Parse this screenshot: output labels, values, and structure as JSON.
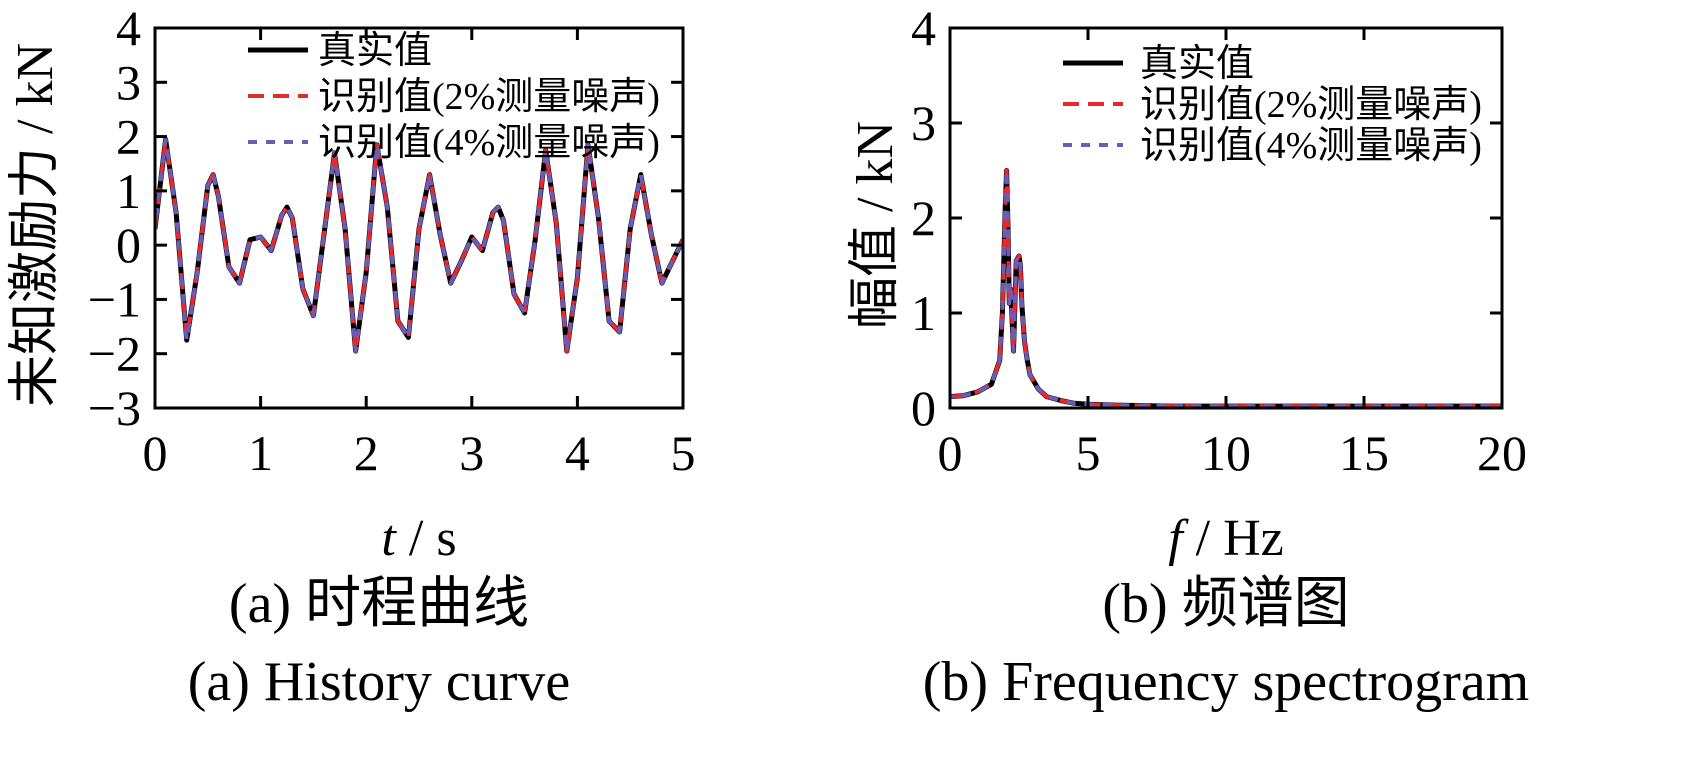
{
  "chart_data": [
    {
      "type": "line",
      "ylabel": "未知激励力 / kN",
      "xlabel_symbol": "t",
      "xlabel_unit": "/ s",
      "xlim": [
        0,
        5
      ],
      "ylim": [
        -3,
        4
      ],
      "xticks": [
        "0",
        "1",
        "2",
        "3",
        "4",
        "5"
      ],
      "yticks": [
        "−3",
        "−2",
        "−1",
        "0",
        "1",
        "2",
        "3",
        "4"
      ],
      "grid": false,
      "legend_position": "top-right",
      "caption_cn": "(a)  时程曲线",
      "caption_en": "(a)  History curve",
      "x": [
        0,
        0.1,
        0.2,
        0.3,
        0.4,
        0.5,
        0.55,
        0.6,
        0.7,
        0.8,
        0.9,
        1.0,
        1.1,
        1.2,
        1.25,
        1.3,
        1.4,
        1.5,
        1.6,
        1.7,
        1.8,
        1.9,
        2.0,
        2.1,
        2.2,
        2.3,
        2.4,
        2.5,
        2.6,
        2.7,
        2.8,
        2.9,
        3.0,
        3.1,
        3.2,
        3.25,
        3.3,
        3.4,
        3.5,
        3.6,
        3.7,
        3.8,
        3.9,
        4.0,
        4.1,
        4.2,
        4.3,
        4.4,
        4.5,
        4.6,
        4.7,
        4.8,
        4.9,
        5.0
      ],
      "series": [
        {
          "name": "真实值",
          "color": "#000000",
          "dash": "solid",
          "values": [
            0.3,
            1.95,
            0.6,
            -1.75,
            -0.5,
            1.1,
            1.3,
            0.9,
            -0.4,
            -0.7,
            0.1,
            0.15,
            -0.1,
            0.55,
            0.7,
            0.5,
            -0.8,
            -1.3,
            0.2,
            1.7,
            0.3,
            -1.95,
            -0.5,
            1.85,
            0.7,
            -1.4,
            -1.7,
            0.3,
            1.3,
            0.2,
            -0.7,
            -0.3,
            0.15,
            -0.1,
            0.6,
            0.7,
            0.45,
            -0.9,
            -1.25,
            0.1,
            1.75,
            0.4,
            -1.95,
            -0.6,
            1.85,
            0.5,
            -1.4,
            -1.6,
            0.3,
            1.3,
            0.2,
            -0.7,
            -0.3,
            0.1
          ]
        },
        {
          "name": "识别值(2%测量噪声)",
          "color": "#e8282e",
          "dash": "dashed",
          "values": [
            0.3,
            1.95,
            0.6,
            -1.75,
            -0.5,
            1.1,
            1.3,
            0.9,
            -0.4,
            -0.7,
            0.1,
            0.15,
            -0.1,
            0.55,
            0.7,
            0.5,
            -0.8,
            -1.3,
            0.2,
            1.7,
            0.3,
            -1.95,
            -0.5,
            1.85,
            0.7,
            -1.4,
            -1.7,
            0.3,
            1.3,
            0.2,
            -0.7,
            -0.3,
            0.15,
            -0.1,
            0.6,
            0.7,
            0.45,
            -0.9,
            -1.25,
            0.1,
            1.75,
            0.4,
            -1.95,
            -0.6,
            1.85,
            0.5,
            -1.4,
            -1.6,
            0.3,
            1.3,
            0.2,
            -0.7,
            -0.3,
            0.1
          ]
        },
        {
          "name": "识别值(4%测量噪声)",
          "color": "#6b5cb5",
          "dash": "dashed",
          "values": [
            0.3,
            1.95,
            0.6,
            -1.75,
            -0.5,
            1.1,
            1.3,
            0.9,
            -0.4,
            -0.7,
            0.1,
            0.15,
            -0.1,
            0.55,
            0.7,
            0.5,
            -0.8,
            -1.3,
            0.2,
            1.7,
            0.3,
            -1.95,
            -0.5,
            1.85,
            0.7,
            -1.4,
            -1.7,
            0.3,
            1.3,
            0.2,
            -0.7,
            -0.3,
            0.15,
            -0.1,
            0.6,
            0.7,
            0.45,
            -0.9,
            -1.25,
            0.1,
            1.75,
            0.4,
            -1.95,
            -0.6,
            1.85,
            0.5,
            -1.4,
            -1.6,
            0.3,
            1.3,
            0.2,
            -0.7,
            -0.3,
            0.1
          ]
        }
      ]
    },
    {
      "type": "line",
      "ylabel": "幅值 / kN",
      "xlabel_symbol": "f",
      "xlabel_unit": "/ Hz",
      "xlim": [
        0,
        20
      ],
      "ylim": [
        0,
        4
      ],
      "xticks": [
        "0",
        "5",
        "10",
        "15",
        "20"
      ],
      "yticks": [
        "0",
        "1",
        "2",
        "3",
        "4"
      ],
      "grid": false,
      "legend_position": "top-right",
      "caption_cn": "(b)  频谱图",
      "caption_en": "(b)  Frequency spectrogram",
      "x": [
        0,
        0.5,
        1.0,
        1.5,
        1.8,
        1.9,
        2.0,
        2.05,
        2.1,
        2.15,
        2.2,
        2.3,
        2.4,
        2.5,
        2.55,
        2.6,
        2.65,
        2.7,
        2.8,
        2.9,
        3.0,
        3.2,
        3.5,
        4.0,
        4.5,
        5.0,
        6.0,
        8.0,
        10.0,
        12.0,
        15.0,
        18.0,
        20.0
      ],
      "series": [
        {
          "name": "真实值",
          "color": "#000000",
          "dash": "solid",
          "values": [
            0.12,
            0.13,
            0.17,
            0.25,
            0.5,
            1.0,
            2.1,
            2.5,
            1.9,
            1.1,
            1.25,
            0.6,
            1.55,
            1.6,
            1.5,
            1.1,
            0.9,
            0.7,
            0.5,
            0.35,
            0.3,
            0.2,
            0.12,
            0.08,
            0.05,
            0.04,
            0.03,
            0.02,
            0.02,
            0.02,
            0.02,
            0.02,
            0.02
          ]
        },
        {
          "name": "识别值(2%测量噪声)",
          "color": "#e8282e",
          "dash": "dashed",
          "values": [
            0.12,
            0.13,
            0.17,
            0.25,
            0.5,
            1.0,
            2.1,
            2.5,
            1.9,
            1.1,
            1.25,
            0.6,
            1.55,
            1.6,
            1.5,
            1.1,
            0.9,
            0.7,
            0.5,
            0.35,
            0.3,
            0.2,
            0.12,
            0.08,
            0.05,
            0.04,
            0.03,
            0.02,
            0.02,
            0.02,
            0.02,
            0.02,
            0.02
          ]
        },
        {
          "name": "识别值(4%测量噪声)",
          "color": "#6b5cb5",
          "dash": "dashed",
          "values": [
            0.12,
            0.13,
            0.17,
            0.25,
            0.5,
            1.0,
            2.1,
            2.5,
            1.9,
            1.1,
            1.25,
            0.6,
            1.55,
            1.6,
            1.5,
            1.1,
            0.9,
            0.7,
            0.5,
            0.35,
            0.3,
            0.2,
            0.12,
            0.08,
            0.05,
            0.04,
            0.03,
            0.02,
            0.02,
            0.02,
            0.02,
            0.02,
            0.02
          ]
        }
      ]
    }
  ]
}
